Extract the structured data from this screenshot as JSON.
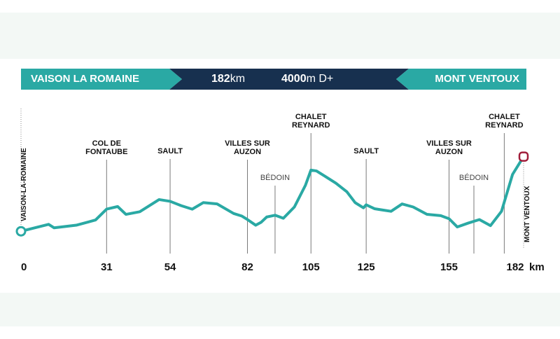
{
  "colors": {
    "teal": "#2aa9a4",
    "navy": "#17304f",
    "end_marker": "#a01d3a",
    "text": "#111111",
    "band": "#f3f8f5"
  },
  "banner": {
    "start": "VAISON LA ROMAINE",
    "distance_value": "182",
    "distance_unit": "km",
    "elevation_value": "4000",
    "elevation_unit": "m D+",
    "finish": "MONT VENTOUX"
  },
  "chart_data": {
    "type": "area",
    "xlabel": "",
    "ylabel": "",
    "x_unit": "km",
    "xlim": [
      0,
      182
    ],
    "ylim": [
      0,
      2000
    ],
    "grid": false,
    "start_label": "VAISON-LA-ROMAINE",
    "finish_label": "MONT VENTOUX",
    "x_ticks": [
      0,
      31,
      54,
      82,
      105,
      125,
      155,
      182
    ],
    "x_tick_unit": "km",
    "profile": {
      "x": [
        0,
        10,
        12,
        20,
        27,
        31,
        35,
        38,
        43,
        50,
        54,
        58,
        62,
        66,
        71,
        77,
        80,
        82,
        85,
        87,
        89,
        92,
        95,
        99,
        103,
        105,
        107,
        110,
        114,
        118,
        121,
        124,
        125,
        128,
        131,
        134,
        138,
        142,
        147,
        152,
        155,
        158,
        162,
        166,
        170,
        174,
        178,
        182
      ],
      "y": [
        190,
        350,
        270,
        330,
        450,
        700,
        760,
        580,
        640,
        920,
        880,
        780,
        700,
        850,
        820,
        600,
        540,
        460,
        330,
        400,
        520,
        560,
        490,
        750,
        1250,
        1600,
        1580,
        1460,
        1300,
        1100,
        850,
        730,
        800,
        710,
        680,
        650,
        820,
        750,
        580,
        550,
        480,
        290,
        380,
        460,
        320,
        650,
        1500,
        1910
      ]
    },
    "markers": [
      {
        "x": 31,
        "label": [
          "COL DE",
          "FONTAUBE"
        ],
        "bold": true
      },
      {
        "x": 54,
        "label": [
          "SAULT"
        ],
        "bold": true
      },
      {
        "x": 82,
        "label": [
          "VILLES SUR",
          "AUZON"
        ],
        "bold": true
      },
      {
        "x": 92,
        "label": [
          "BÉDOIN"
        ],
        "bold": false
      },
      {
        "x": 105,
        "label": [
          "CHALET",
          "REYNARD"
        ],
        "bold": true
      },
      {
        "x": 125,
        "label": [
          "SAULT"
        ],
        "bold": true
      },
      {
        "x": 155,
        "label": [
          "VILLES SUR",
          "AUZON"
        ],
        "bold": true
      },
      {
        "x": 164,
        "label": [
          "BÉDOIN"
        ],
        "bold": false
      },
      {
        "x": 175,
        "label": [
          "CHALET",
          "REYNARD"
        ],
        "bold": true
      }
    ]
  }
}
